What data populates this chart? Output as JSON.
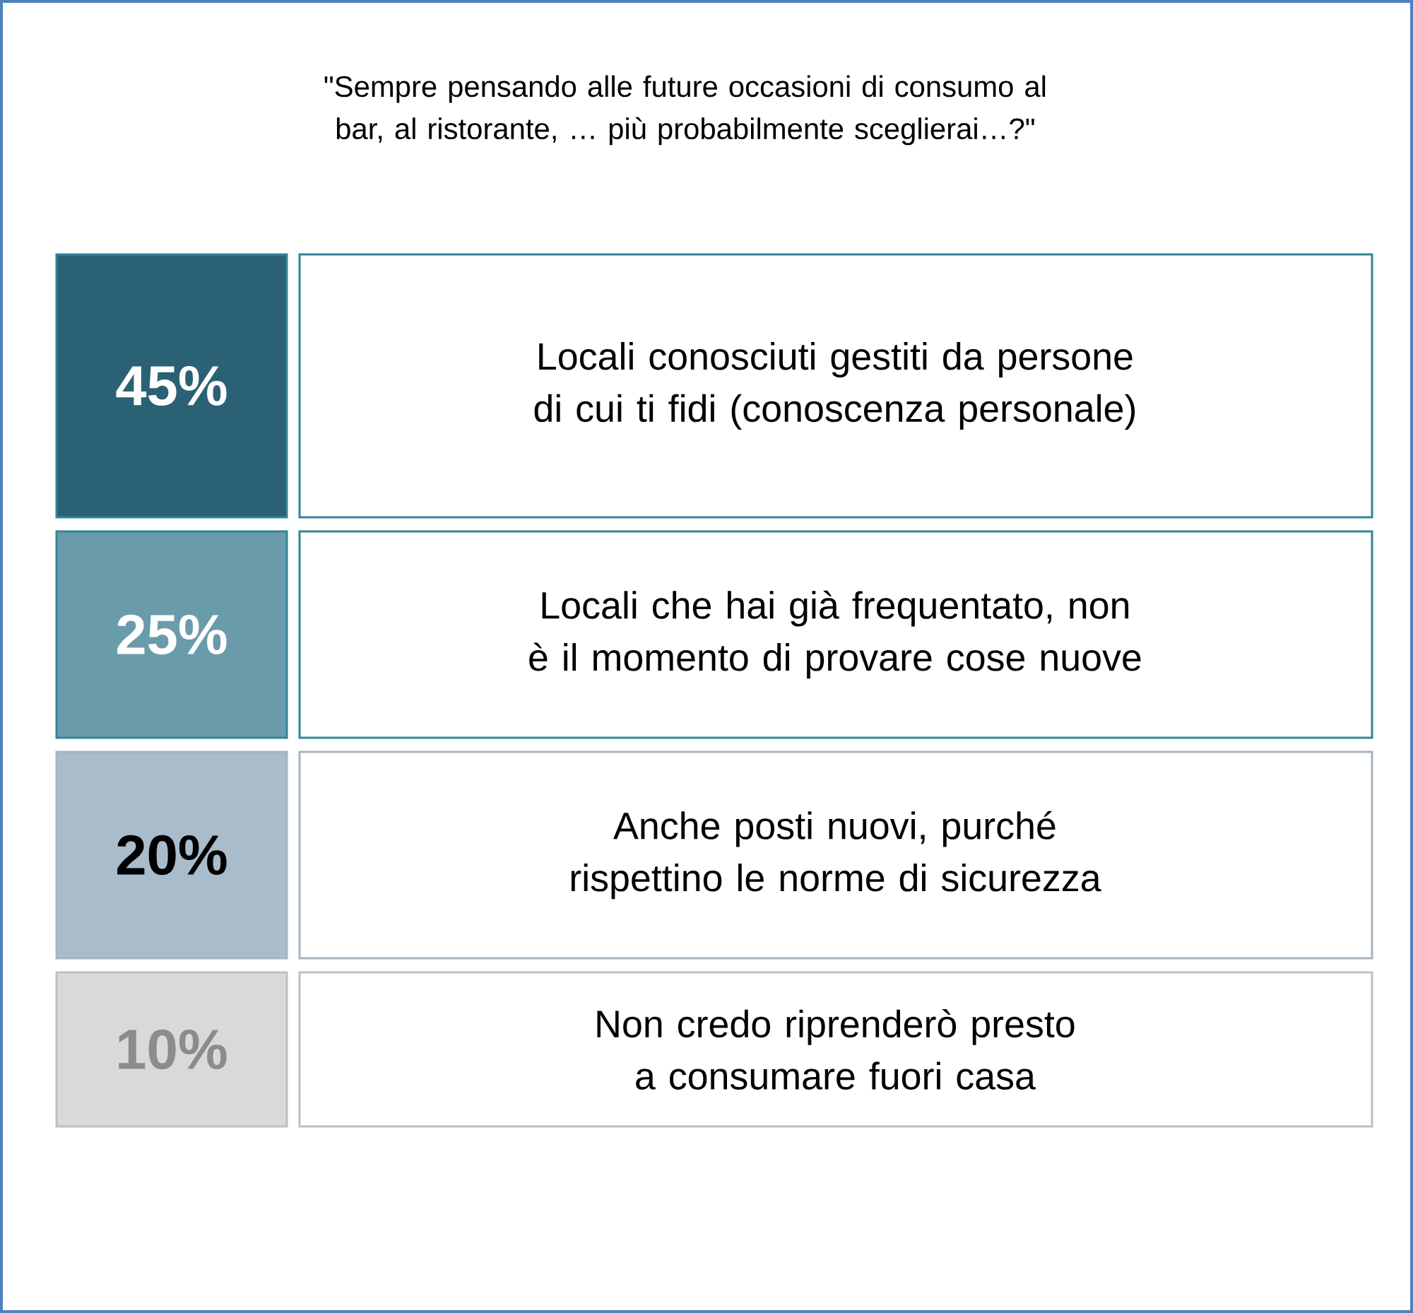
{
  "chart_data": {
    "type": "other",
    "title": "\"Sempre pensando alle future occasioni di consumo al bar, al ristorante, … più probabilmente sceglierai…?\"",
    "categories": [
      "Locali conosciuti gestiti da persone di cui ti fidi (conoscenza personale)",
      "Locali che hai già frequentato, non è il momento di provare cose nuove",
      "Anche posti nuovi, purché rispettino le norme di sicurezza",
      "Non credo riprenderò presto a consumare fuori casa"
    ],
    "values": [
      45,
      25,
      20,
      10
    ],
    "value_labels": [
      "45%",
      "25%",
      "20%",
      "10%"
    ],
    "colors": [
      "#2b6174",
      "#6a9bab",
      "#a8bccc",
      "#d9d9d9"
    ]
  }
}
